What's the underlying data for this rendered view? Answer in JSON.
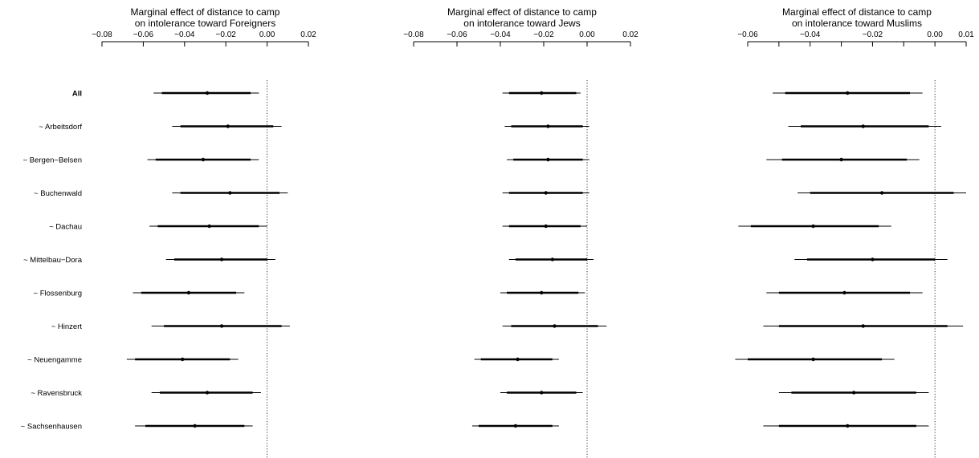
{
  "row_labels": [
    "All",
    "~ Arbeitsdorf",
    "~ Bergen−Belsen",
    "~ Buchenwald",
    "~ Dachau",
    "~ Mittelbau−Dora",
    "~ Flossenburg",
    "~ Hinzert",
    "~ Neuengamme",
    "~ Ravensbruck",
    "~ Sachsenhausen"
  ],
  "chart_data": [
    {
      "type": "coefficient-plot",
      "title": [
        "Marginal effect of distance to camp",
        "on intolerance toward Foreigners"
      ],
      "xlim": [
        -0.08,
        0.02
      ],
      "xticks": [
        -0.08,
        -0.06,
        -0.04,
        -0.02,
        0.0,
        0.02
      ],
      "xtick_labels": [
        "−0.08",
        "−0.06",
        "−0.04",
        "−0.02",
        "0.00",
        "0.02"
      ],
      "reference_line": 0,
      "points": [
        {
          "label": "All",
          "estimate": -0.029,
          "ci90": [
            -0.051,
            -0.008
          ],
          "ci95": [
            -0.055,
            -0.004
          ]
        },
        {
          "label": "~ Arbeitsdorf",
          "estimate": -0.019,
          "ci90": [
            -0.042,
            0.003
          ],
          "ci95": [
            -0.046,
            0.007
          ]
        },
        {
          "label": "~ Bergen−Belsen",
          "estimate": -0.031,
          "ci90": [
            -0.054,
            -0.008
          ],
          "ci95": [
            -0.058,
            -0.004
          ]
        },
        {
          "label": "~ Buchenwald",
          "estimate": -0.018,
          "ci90": [
            -0.042,
            0.006
          ],
          "ci95": [
            -0.046,
            0.01
          ]
        },
        {
          "label": "~ Dachau",
          "estimate": -0.028,
          "ci90": [
            -0.053,
            -0.004
          ],
          "ci95": [
            -0.057,
            0.0
          ]
        },
        {
          "label": "~ Mittelbau−Dora",
          "estimate": -0.022,
          "ci90": [
            -0.045,
            0.0
          ],
          "ci95": [
            -0.049,
            0.004
          ]
        },
        {
          "label": "~ Flossenburg",
          "estimate": -0.038,
          "ci90": [
            -0.061,
            -0.015
          ],
          "ci95": [
            -0.065,
            -0.011
          ]
        },
        {
          "label": "~ Hinzert",
          "estimate": -0.022,
          "ci90": [
            -0.05,
            0.007
          ],
          "ci95": [
            -0.056,
            0.011
          ]
        },
        {
          "label": "~ Neuengamme",
          "estimate": -0.041,
          "ci90": [
            -0.064,
            -0.018
          ],
          "ci95": [
            -0.068,
            -0.014
          ]
        },
        {
          "label": "~ Ravensbruck",
          "estimate": -0.029,
          "ci90": [
            -0.052,
            -0.007
          ],
          "ci95": [
            -0.056,
            -0.003
          ]
        },
        {
          "label": "~ Sachsenhausen",
          "estimate": -0.035,
          "ci90": [
            -0.059,
            -0.011
          ],
          "ci95": [
            -0.064,
            -0.007
          ]
        }
      ]
    },
    {
      "type": "coefficient-plot",
      "title": [
        "Marginal effect of distance to camp",
        "on intolerance toward Jews"
      ],
      "xlim": [
        -0.08,
        0.02
      ],
      "xticks": [
        -0.08,
        -0.06,
        -0.04,
        -0.02,
        0.0,
        0.02
      ],
      "xtick_labels": [
        "−0.08",
        "−0.06",
        "−0.04",
        "−0.02",
        "0.00",
        "0.02"
      ],
      "reference_line": 0,
      "points": [
        {
          "label": "All",
          "estimate": -0.021,
          "ci90": [
            -0.036,
            -0.005
          ],
          "ci95": [
            -0.039,
            -0.003
          ]
        },
        {
          "label": "~ Arbeitsdorf",
          "estimate": -0.018,
          "ci90": [
            -0.035,
            -0.002
          ],
          "ci95": [
            -0.038,
            0.001
          ]
        },
        {
          "label": "~ Bergen−Belsen",
          "estimate": -0.018,
          "ci90": [
            -0.034,
            -0.002
          ],
          "ci95": [
            -0.037,
            0.001
          ]
        },
        {
          "label": "~ Buchenwald",
          "estimate": -0.019,
          "ci90": [
            -0.036,
            -0.002
          ],
          "ci95": [
            -0.039,
            0.001
          ]
        },
        {
          "label": "~ Dachau",
          "estimate": -0.019,
          "ci90": [
            -0.036,
            -0.003
          ],
          "ci95": [
            -0.039,
            0.0
          ]
        },
        {
          "label": "~ Mittelbau−Dora",
          "estimate": -0.016,
          "ci90": [
            -0.033,
            0.0
          ],
          "ci95": [
            -0.036,
            0.003
          ]
        },
        {
          "label": "~ Flossenburg",
          "estimate": -0.021,
          "ci90": [
            -0.037,
            -0.004
          ],
          "ci95": [
            -0.04,
            -0.001
          ]
        },
        {
          "label": "~ Hinzert",
          "estimate": -0.015,
          "ci90": [
            -0.035,
            0.005
          ],
          "ci95": [
            -0.039,
            0.009
          ]
        },
        {
          "label": "~ Neuengamme",
          "estimate": -0.032,
          "ci90": [
            -0.049,
            -0.016
          ],
          "ci95": [
            -0.052,
            -0.013
          ]
        },
        {
          "label": "~ Ravensbruck",
          "estimate": -0.021,
          "ci90": [
            -0.037,
            -0.005
          ],
          "ci95": [
            -0.04,
            -0.002
          ]
        },
        {
          "label": "~ Sachsenhausen",
          "estimate": -0.033,
          "ci90": [
            -0.05,
            -0.016
          ],
          "ci95": [
            -0.053,
            -0.013
          ]
        }
      ]
    },
    {
      "type": "coefficient-plot",
      "title": [
        "Marginal effect of distance to camp",
        "on intolerance toward Muslims"
      ],
      "xlim": [
        -0.06,
        0.01
      ],
      "xticks": [
        -0.06,
        -0.05,
        -0.04,
        -0.03,
        -0.02,
        -0.01,
        0.0,
        0.01
      ],
      "xtick_labels": [
        "−0.06",
        "",
        "−0.04",
        "",
        "−0.02",
        "",
        "0.00",
        "0.01"
      ],
      "reference_line": 0,
      "points": [
        {
          "label": "All",
          "estimate": -0.028,
          "ci90": [
            -0.048,
            -0.008
          ],
          "ci95": [
            -0.052,
            -0.004
          ]
        },
        {
          "label": "~ Arbeitsdorf",
          "estimate": -0.023,
          "ci90": [
            -0.043,
            -0.002
          ],
          "ci95": [
            -0.047,
            0.002
          ]
        },
        {
          "label": "~ Bergen−Belsen",
          "estimate": -0.03,
          "ci90": [
            -0.049,
            -0.009
          ],
          "ci95": [
            -0.054,
            -0.005
          ]
        },
        {
          "label": "~ Buchenwald",
          "estimate": -0.017,
          "ci90": [
            -0.04,
            0.006
          ],
          "ci95": [
            -0.044,
            0.01
          ]
        },
        {
          "label": "~ Dachau",
          "estimate": -0.039,
          "ci90": [
            -0.059,
            -0.018
          ],
          "ci95": [
            -0.063,
            -0.014
          ]
        },
        {
          "label": "~ Mittelbau−Dora",
          "estimate": -0.02,
          "ci90": [
            -0.041,
            0.0
          ],
          "ci95": [
            -0.045,
            0.004
          ]
        },
        {
          "label": "~ Flossenburg",
          "estimate": -0.029,
          "ci90": [
            -0.05,
            -0.008
          ],
          "ci95": [
            -0.054,
            -0.004
          ]
        },
        {
          "label": "~ Hinzert",
          "estimate": -0.023,
          "ci90": [
            -0.05,
            0.004
          ],
          "ci95": [
            -0.055,
            0.009
          ]
        },
        {
          "label": "~ Neuengamme",
          "estimate": -0.039,
          "ci90": [
            -0.06,
            -0.017
          ],
          "ci95": [
            -0.064,
            -0.013
          ]
        },
        {
          "label": "~ Ravensbruck",
          "estimate": -0.026,
          "ci90": [
            -0.046,
            -0.006
          ],
          "ci95": [
            -0.05,
            -0.002
          ]
        },
        {
          "label": "~ Sachsenhausen",
          "estimate": -0.028,
          "ci90": [
            -0.05,
            -0.006
          ],
          "ci95": [
            -0.055,
            -0.002
          ]
        }
      ]
    }
  ]
}
